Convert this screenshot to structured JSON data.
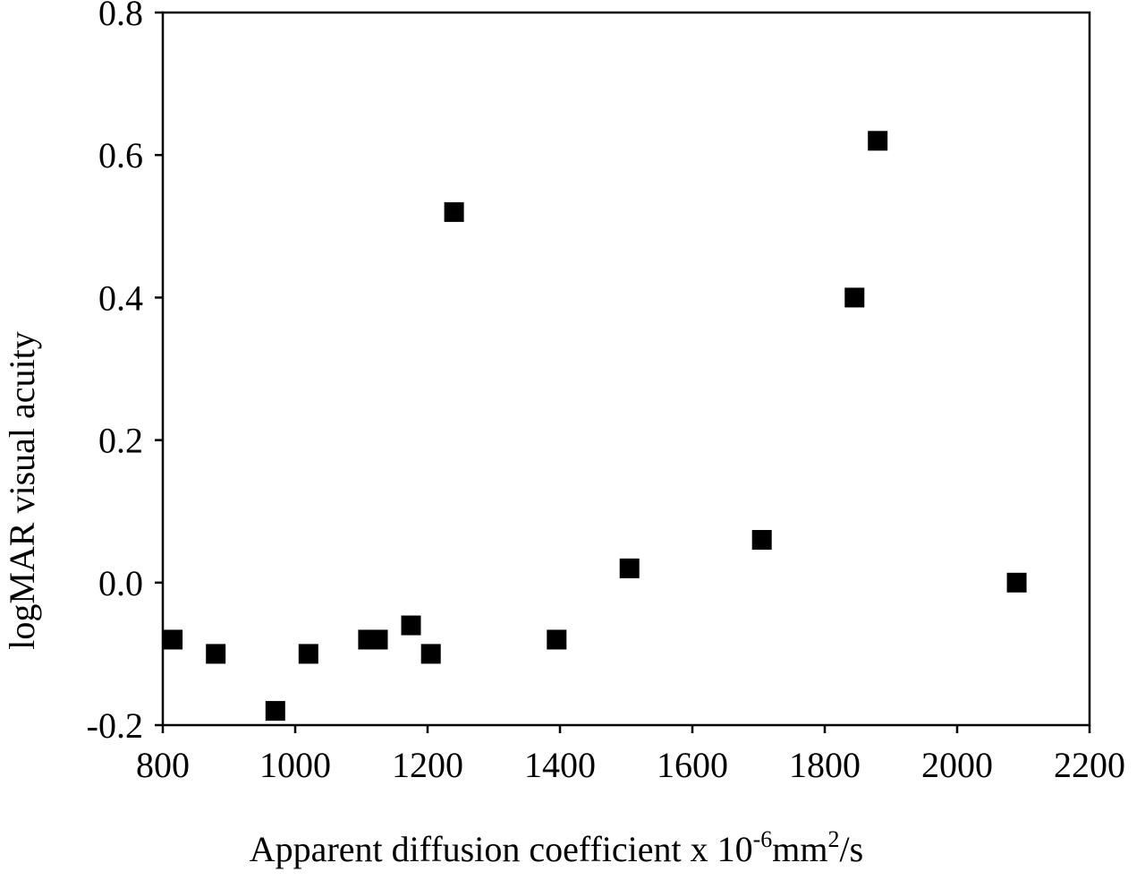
{
  "chart_data": {
    "type": "scatter",
    "title": "",
    "xlabel": {
      "main": "Apparent diffusion coefficient x 10",
      "exponent": "-6",
      "unit_base": "mm",
      "unit_exponent": "2",
      "unit_suffix": "/s"
    },
    "ylabel": "logMAR visual acuity",
    "xlim": [
      800,
      2200
    ],
    "ylim": [
      -0.2,
      0.8
    ],
    "x_ticks": [
      800,
      1000,
      1200,
      1400,
      1600,
      1800,
      2000,
      2200
    ],
    "x_tick_labels": [
      "800",
      "1000",
      "1200",
      "1400",
      "1600",
      "1800",
      "2000",
      "2200"
    ],
    "y_ticks": [
      -0.2,
      0.0,
      0.2,
      0.4,
      0.6,
      0.8
    ],
    "y_tick_labels": [
      "-0.2",
      "0.0",
      "0.2",
      "0.4",
      "0.6",
      "0.8"
    ],
    "grid": false,
    "legend": "none",
    "marker": "filled-square",
    "marker_color": "#000000",
    "points": [
      {
        "x": 815,
        "y": -0.08
      },
      {
        "x": 880,
        "y": -0.1
      },
      {
        "x": 970,
        "y": -0.18
      },
      {
        "x": 1020,
        "y": -0.1
      },
      {
        "x": 1110,
        "y": -0.08
      },
      {
        "x": 1125,
        "y": -0.08
      },
      {
        "x": 1175,
        "y": -0.06
      },
      {
        "x": 1205,
        "y": -0.1
      },
      {
        "x": 1240,
        "y": 0.52
      },
      {
        "x": 1395,
        "y": -0.08
      },
      {
        "x": 1505,
        "y": 0.02
      },
      {
        "x": 1705,
        "y": 0.06
      },
      {
        "x": 1845,
        "y": 0.4
      },
      {
        "x": 1880,
        "y": 0.62
      },
      {
        "x": 2090,
        "y": 0.0
      }
    ]
  }
}
